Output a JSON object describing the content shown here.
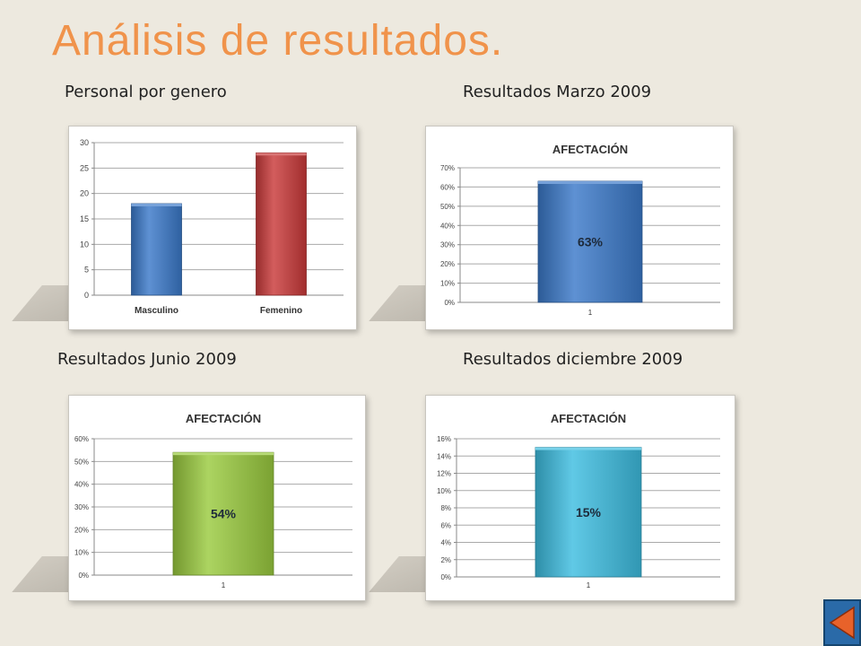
{
  "slide": {
    "title": "Análisis de resultados.",
    "captions": {
      "gender": "Personal por genero",
      "march": "Resultados Marzo 2009",
      "june": "Resultados Junio 2009",
      "december": "Resultados diciembre 2009"
    }
  },
  "chart_data": [
    {
      "type": "bar",
      "title": "",
      "categories": [
        "Masculino",
        "Femenino"
      ],
      "values": [
        18,
        28
      ],
      "colors": [
        "#3b79c9",
        "#c93a3a"
      ],
      "ylim": [
        0,
        30
      ],
      "yticks": [
        "0",
        "5",
        "10",
        "15",
        "20",
        "25",
        "30"
      ],
      "grid": true
    },
    {
      "type": "bar",
      "title": "AFECTACIÓN",
      "categories": [
        "1"
      ],
      "values": [
        0.63
      ],
      "data_labels": [
        "63%"
      ],
      "colors": [
        "#3b79c9"
      ],
      "ylim": [
        0,
        0.7
      ],
      "yticks": [
        "0%",
        "10%",
        "20%",
        "30%",
        "40%",
        "50%",
        "60%",
        "70%"
      ],
      "grid": true
    },
    {
      "type": "bar",
      "title": "AFECTACIÓN",
      "categories": [
        "1"
      ],
      "values": [
        0.54
      ],
      "data_labels": [
        "54%"
      ],
      "colors": [
        "#9acb3e"
      ],
      "ylim": [
        0,
        0.6
      ],
      "yticks": [
        "0%",
        "10%",
        "20%",
        "30%",
        "40%",
        "50%",
        "60%"
      ],
      "grid": true
    },
    {
      "type": "bar",
      "title": "AFECTACIÓN",
      "categories": [
        "1"
      ],
      "values": [
        0.15
      ],
      "data_labels": [
        "15%"
      ],
      "colors": [
        "#3dbde0"
      ],
      "ylim": [
        0,
        0.16
      ],
      "yticks": [
        "0%",
        "2%",
        "4%",
        "6%",
        "8%",
        "10%",
        "12%",
        "14%",
        "16%"
      ],
      "grid": true
    }
  ],
  "nav": {
    "icon": "back-arrow-icon"
  }
}
